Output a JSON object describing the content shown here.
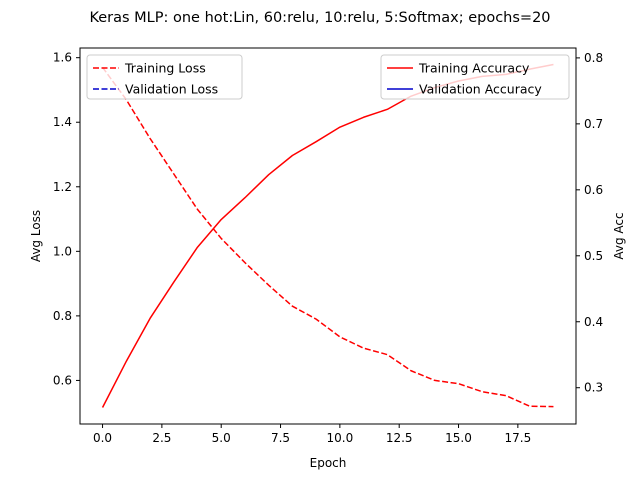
{
  "chart_data": {
    "type": "line",
    "title": "Keras MLP: one hot:Lin, 60:relu, 10:relu, 5:Softmax; epochs=20",
    "xlabel": "Epoch",
    "ylabel_left": "Avg Loss",
    "ylabel_right": "Avg Acc",
    "xlim": [
      -0.95,
      19.95
    ],
    "ylim_left": [
      0.465,
      1.63
    ],
    "ylim_right": [
      0.245,
      0.815
    ],
    "x_ticks": [
      0.0,
      2.5,
      5.0,
      7.5,
      10.0,
      12.5,
      15.0,
      17.5
    ],
    "x_tick_labels": [
      "0.0",
      "2.5",
      "5.0",
      "7.5",
      "10.0",
      "12.5",
      "15.0",
      "17.5"
    ],
    "y_left_ticks": [
      0.6,
      0.8,
      1.0,
      1.2,
      1.4,
      1.6
    ],
    "y_left_tick_labels": [
      "0.6",
      "0.8",
      "1.0",
      "1.2",
      "1.4",
      "1.6"
    ],
    "y_right_ticks": [
      0.3,
      0.4,
      0.5,
      0.6,
      0.7,
      0.8
    ],
    "y_right_tick_labels": [
      "0.3",
      "0.4",
      "0.5",
      "0.6",
      "0.7",
      "0.8"
    ],
    "grid": false,
    "x": [
      0,
      1,
      2,
      3,
      4,
      5,
      6,
      7,
      8,
      9,
      10,
      11,
      12,
      13,
      14,
      15,
      16,
      17,
      18,
      19
    ],
    "left_series": [
      {
        "name": "Training Loss",
        "color": "#ff0000",
        "dash": "dashed",
        "values": [
          1.57,
          1.47,
          1.35,
          1.24,
          1.13,
          1.04,
          0.965,
          0.895,
          0.83,
          0.79,
          0.735,
          0.7,
          0.68,
          0.63,
          0.6,
          0.59,
          0.565,
          0.553,
          0.52,
          0.519
        ]
      },
      {
        "name": "Validation Loss",
        "color": "#0000cc",
        "dash": "dashed",
        "values": []
      }
    ],
    "right_series": [
      {
        "name": "Training Accuracy",
        "color": "#ff0000",
        "dash": "solid",
        "values": [
          0.27,
          0.34,
          0.405,
          0.46,
          0.513,
          0.555,
          0.588,
          0.623,
          0.652,
          0.673,
          0.695,
          0.71,
          0.722,
          0.742,
          0.755,
          0.765,
          0.772,
          0.775,
          0.783,
          0.79
        ]
      },
      {
        "name": "Validation Accuracy",
        "color": "#0000cc",
        "dash": "solid",
        "values": []
      }
    ],
    "legend_left_placement": "upper left",
    "legend_right_placement": "upper right"
  }
}
